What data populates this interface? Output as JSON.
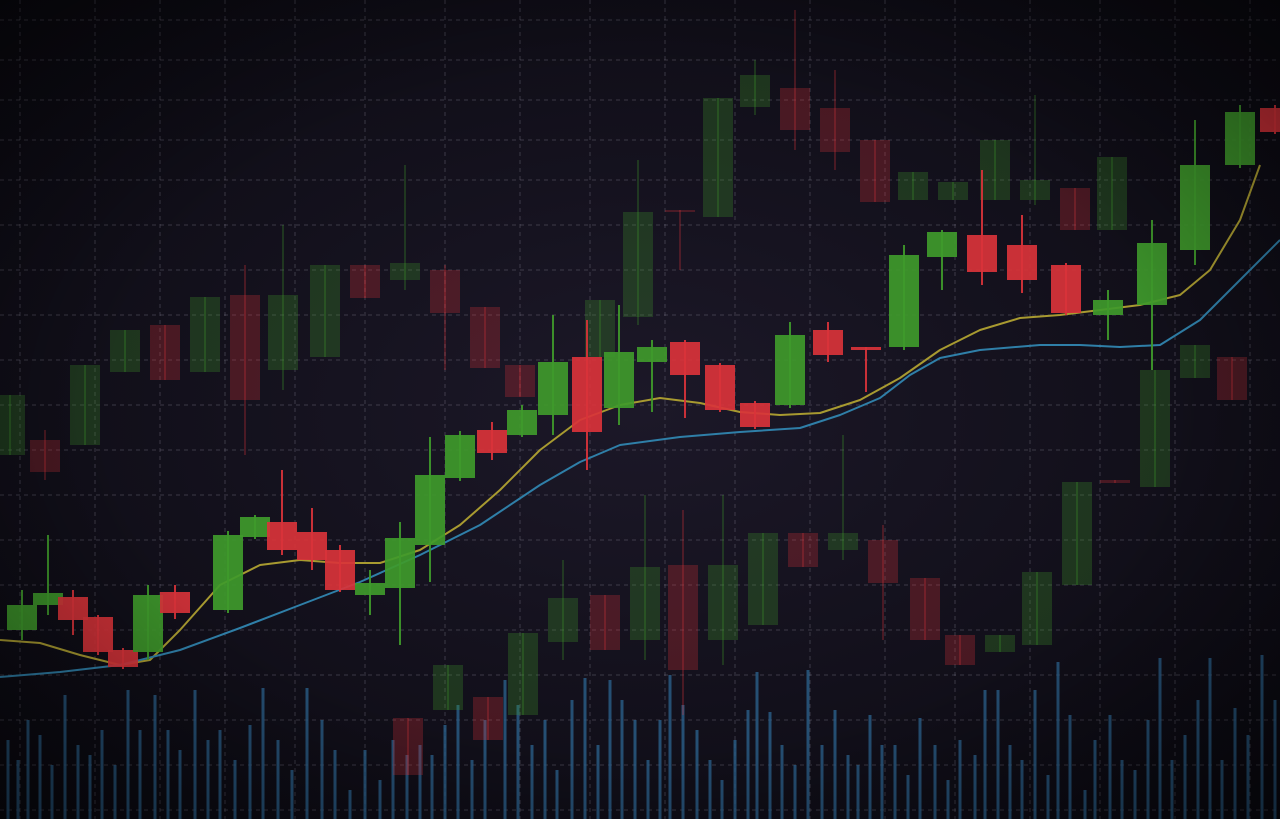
{
  "chart_data": {
    "type": "candlestick",
    "xlim": [
      0,
      1280
    ],
    "ylim": [
      0,
      819
    ],
    "grid": true,
    "xticks": [
      20,
      95,
      160,
      225,
      295,
      365,
      445,
      520,
      590,
      665,
      735,
      810,
      885,
      955,
      1030,
      1100,
      1175,
      1250
    ],
    "yticks": [
      9,
      54,
      99,
      144,
      189,
      234,
      279,
      324,
      369,
      414,
      459,
      504,
      549,
      594,
      639,
      679,
      719,
      759,
      799
    ],
    "up_color": "#3f9a2b",
    "down_color": "#d9333a",
    "candles": {
      "x": [
        22,
        48,
        73,
        98,
        123,
        148,
        175,
        228,
        255,
        282,
        312,
        340,
        370,
        400,
        430,
        460,
        492,
        522,
        553,
        587,
        619,
        652,
        685,
        720,
        755,
        790,
        828,
        866,
        904,
        942,
        982,
        1022,
        1066,
        1108,
        1152,
        1195,
        1240,
        1275
      ],
      "open": [
        189,
        214,
        222,
        202,
        169,
        167,
        227,
        209,
        282,
        297,
        287,
        269,
        224,
        231,
        274,
        341,
        389,
        384,
        404,
        462,
        411,
        457,
        477,
        454,
        416,
        414,
        489,
        472,
        472,
        562,
        584,
        574,
        554,
        504,
        514,
        569,
        654,
        711
      ],
      "high": [
        229,
        284,
        229,
        204,
        171,
        234,
        234,
        288,
        304,
        349,
        311,
        274,
        249,
        297,
        382,
        388,
        397,
        414,
        504,
        499,
        514,
        479,
        479,
        456,
        418,
        497,
        497,
        472,
        574,
        589,
        649,
        604,
        556,
        529,
        599,
        699,
        714,
        714
      ],
      "low": [
        179,
        204,
        184,
        164,
        150,
        159,
        200,
        206,
        280,
        264,
        249,
        227,
        204,
        174,
        237,
        338,
        359,
        382,
        384,
        349,
        394,
        407,
        401,
        407,
        390,
        411,
        457,
        427,
        469,
        529,
        534,
        526,
        504,
        479,
        449,
        554,
        651,
        685
      ],
      "close": [
        214,
        226,
        199,
        167,
        152,
        224,
        206,
        284,
        302,
        269,
        259,
        229,
        236,
        281,
        344,
        384,
        366,
        409,
        457,
        387,
        467,
        472,
        444,
        409,
        392,
        484,
        464,
        469,
        564,
        587,
        547,
        539,
        506,
        519,
        576,
        654,
        707,
        687
      ]
    },
    "background_candles": {
      "opacity": 0.28,
      "x": [
        10,
        45,
        85,
        125,
        165,
        205,
        245,
        283,
        325,
        365,
        405,
        445,
        485,
        520,
        600,
        638,
        680,
        718,
        755,
        795,
        835,
        875,
        913,
        953,
        995,
        1035,
        1075,
        1112,
        1155,
        1195,
        1232,
        408,
        448,
        488,
        523,
        563,
        605,
        645,
        683,
        723,
        763,
        803,
        843,
        883,
        925,
        960,
        1000,
        1037,
        1077,
        1115
      ],
      "open": [
        364,
        379,
        374,
        447,
        494,
        447,
        524,
        449,
        462,
        554,
        539,
        549,
        512,
        454,
        462,
        502,
        609,
        602,
        712,
        731,
        711,
        679,
        619,
        619,
        619,
        619,
        631,
        589,
        332,
        441,
        462,
        101,
        109,
        122,
        104,
        177,
        224,
        179,
        254,
        179,
        194,
        286,
        269,
        279,
        241,
        184,
        167,
        174,
        234,
        339
      ],
      "high": [
        424,
        389,
        454,
        489,
        494,
        522,
        554,
        594,
        554,
        554,
        654,
        554,
        512,
        454,
        519,
        659,
        609,
        721,
        759,
        809,
        749,
        679,
        647,
        637,
        679,
        724,
        631,
        662,
        449,
        474,
        462,
        101,
        154,
        122,
        186,
        259,
        224,
        324,
        309,
        324,
        286,
        286,
        384,
        294,
        241,
        184,
        184,
        247,
        337,
        339
      ],
      "low": [
        364,
        339,
        374,
        447,
        439,
        447,
        364,
        429,
        462,
        521,
        529,
        449,
        451,
        422,
        462,
        494,
        549,
        602,
        704,
        669,
        649,
        617,
        619,
        619,
        619,
        614,
        589,
        589,
        332,
        441,
        419,
        44,
        109,
        79,
        104,
        159,
        169,
        159,
        104,
        154,
        194,
        252,
        259,
        179,
        179,
        154,
        167,
        174,
        234,
        336
      ],
      "close": [
        424,
        347,
        454,
        489,
        439,
        522,
        419,
        524,
        554,
        521,
        556,
        506,
        451,
        422,
        519,
        607,
        607,
        721,
        744,
        689,
        667,
        617,
        647,
        637,
        679,
        639,
        589,
        662,
        449,
        474,
        419,
        44,
        154,
        79,
        186,
        221,
        169,
        252,
        149,
        254,
        286,
        252,
        286,
        236,
        179,
        154,
        184,
        247,
        337,
        336
      ]
    },
    "lines": [
      {
        "color": "#a89a30",
        "x": [
          0,
          40,
          80,
          120,
          150,
          180,
          220,
          260,
          300,
          340,
          380,
          420,
          460,
          500,
          540,
          580,
          620,
          660,
          700,
          740,
          780,
          820,
          860,
          900,
          940,
          980,
          1020,
          1060,
          1100,
          1140,
          1180,
          1210,
          1240,
          1260
        ],
        "values": [
          179,
          176,
          164,
          154,
          159,
          189,
          234,
          254,
          259,
          256,
          256,
          269,
          294,
          329,
          369,
          399,
          414,
          421,
          416,
          407,
          404,
          406,
          419,
          441,
          469,
          489,
          501,
          504,
          509,
          514,
          524,
          549,
          599,
          654
        ]
      },
      {
        "color": "#2f7fa8",
        "x": [
          0,
          60,
          120,
          180,
          240,
          300,
          360,
          420,
          480,
          540,
          580,
          620,
          680,
          740,
          800,
          840,
          880,
          910,
          940,
          980,
          1040,
          1080,
          1120,
          1160,
          1200,
          1240,
          1280
        ],
        "values": [
          142,
          147,
          154,
          169,
          191,
          214,
          237,
          264,
          294,
          334,
          357,
          374,
          382,
          387,
          391,
          404,
          421,
          444,
          461,
          469,
          474,
          474,
          472,
          474,
          499,
          539,
          579
        ]
      }
    ],
    "volume": {
      "color": "#2a5f8a",
      "x": [
        8,
        18,
        28,
        40,
        52,
        65,
        78,
        90,
        102,
        115,
        128,
        140,
        155,
        168,
        180,
        195,
        208,
        220,
        235,
        250,
        263,
        278,
        292,
        307,
        322,
        335,
        350,
        365,
        380,
        393,
        407,
        420,
        432,
        445,
        458,
        472,
        485,
        505,
        518,
        532,
        545,
        557,
        572,
        585,
        598,
        610,
        622,
        635,
        648,
        660,
        670,
        683,
        697,
        710,
        722,
        735,
        748,
        757,
        770,
        782,
        795,
        808,
        822,
        835,
        848,
        858,
        870,
        882,
        895,
        908,
        920,
        935,
        948,
        960,
        975,
        985,
        998,
        1010,
        1022,
        1035,
        1048,
        1058,
        1070,
        1085,
        1095,
        1110,
        1122,
        1135,
        1148,
        1160,
        1172,
        1185,
        1198,
        1210,
        1222,
        1235,
        1248,
        1262,
        1275
      ],
      "values": [
        79,
        59,
        99,
        84,
        54,
        124,
        74,
        64,
        89,
        54,
        129,
        89,
        124,
        89,
        69,
        129,
        79,
        89,
        59,
        94,
        131,
        79,
        49,
        131,
        99,
        69,
        29,
        69,
        39,
        79,
        64,
        74,
        64,
        94,
        114,
        59,
        99,
        139,
        114,
        74,
        99,
        49,
        119,
        141,
        74,
        139,
        119,
        99,
        59,
        99,
        144,
        114,
        89,
        59,
        39,
        79,
        109,
        147,
        107,
        74,
        54,
        149,
        74,
        109,
        64,
        54,
        104,
        74,
        74,
        44,
        101,
        74,
        39,
        79,
        64,
        129,
        129,
        74,
        59,
        129,
        44,
        157,
        104,
        29,
        79,
        104,
        59,
        49,
        99,
        161,
        59,
        84,
        119,
        161,
        59,
        111,
        84,
        164,
        119
      ]
    }
  }
}
